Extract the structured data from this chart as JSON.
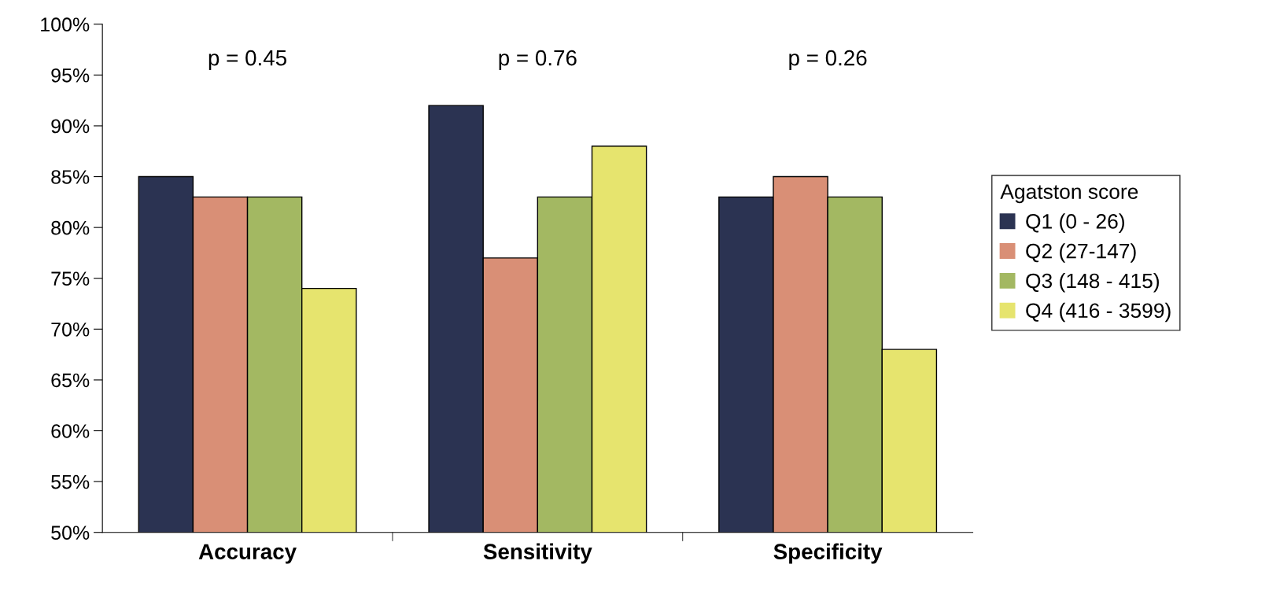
{
  "chart_data": {
    "type": "bar",
    "categories": [
      "Accuracy",
      "Sensitivity",
      "Specificity"
    ],
    "series": [
      {
        "name": "Q1 (0 - 26)",
        "color": "#2b3352",
        "values": [
          85,
          92,
          83
        ]
      },
      {
        "name": "Q2 (27-147)",
        "color": "#d98f76",
        "values": [
          83,
          77,
          85
        ]
      },
      {
        "name": "Q3 (148 - 415)",
        "color": "#a3b862",
        "values": [
          83,
          83,
          83
        ]
      },
      {
        "name": "Q4 (416 - 3599)",
        "color": "#e6e46e",
        "values": [
          74,
          88,
          68
        ]
      }
    ],
    "legend_title": "Agatston score",
    "legend": "right",
    "ylim": [
      50,
      100
    ],
    "yticks": [
      {
        "value": 50,
        "label": "50%"
      },
      {
        "value": 55,
        "label": "55%"
      },
      {
        "value": 60,
        "label": "60%"
      },
      {
        "value": 65,
        "label": "65%"
      },
      {
        "value": 70,
        "label": "70%"
      },
      {
        "value": 75,
        "label": "75%"
      },
      {
        "value": 80,
        "label": "80%"
      },
      {
        "value": 85,
        "label": "85%"
      },
      {
        "value": 90,
        "label": "90%"
      },
      {
        "value": 95,
        "label": "95%"
      },
      {
        "value": 100,
        "label": "100%"
      }
    ],
    "annotations": [
      "p = 0.45",
      "p = 0.76",
      "p = 0.26"
    ],
    "grid": false
  }
}
